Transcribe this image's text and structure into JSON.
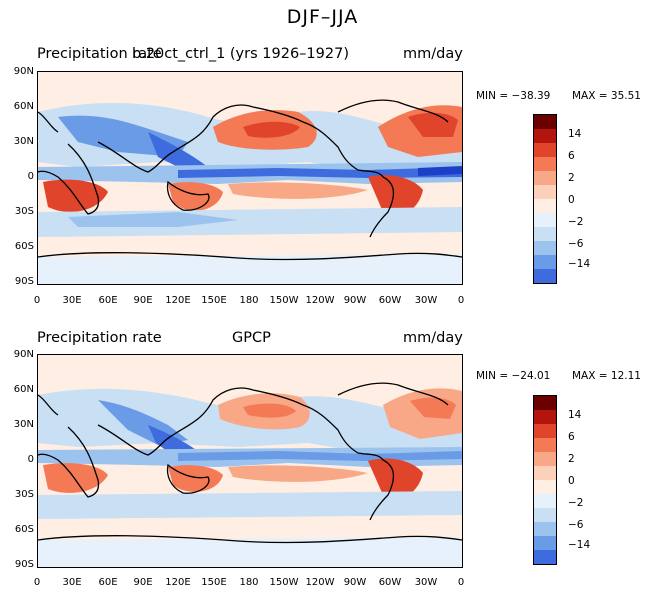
{
  "title": "DJF–JJA",
  "panels": [
    {
      "left_title": "Precipitation rate",
      "center_title": "b.20ct_ctrl_1 (yrs 1926–1927)",
      "units": "mm/day",
      "min_label": "MIN = −38.39",
      "max_label": "MAX =  35.51"
    },
    {
      "left_title": "Precipitation rate",
      "center_title": "GPCP",
      "units": "mm/day",
      "min_label": "MIN = −24.01",
      "max_label": "MAX =  12.11"
    }
  ],
  "lat_labels": [
    "90N",
    "60N",
    "30N",
    "0",
    "30S",
    "60S",
    "90S"
  ],
  "lon_labels": [
    "0",
    "30E",
    "60E",
    "90E",
    "120E",
    "150E",
    "180",
    "150W",
    "120W",
    "90W",
    "60W",
    "30W",
    "0"
  ],
  "colorbar": {
    "labels": [
      "14",
      "6",
      "2",
      "0",
      "−2",
      "−6",
      "−14"
    ],
    "colors": [
      "#6b0000",
      "#b3150e",
      "#e0452c",
      "#f37a55",
      "#f8a887",
      "#fbd1b9",
      "#feeee4",
      "#e7f1fb",
      "#c8dff4",
      "#9bc3ee",
      "#6a9be6",
      "#3e6cde",
      "#1e3fc8",
      "#0a1a8a"
    ]
  }
}
